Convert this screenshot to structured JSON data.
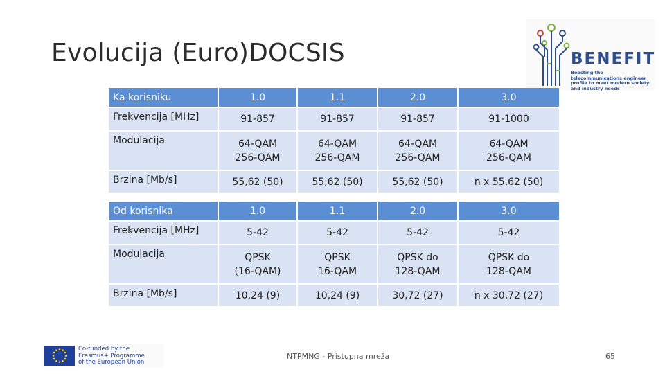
{
  "title": "Evolucija (Euro)DOCSIS",
  "logo": {
    "word": "BENEFIT",
    "tagline": "Boosting the telecommunications engineer profile to meet modern society and industry needs",
    "brand_color": "#2d4d8c"
  },
  "downstream": {
    "header": [
      "Ka korisniku",
      "1.0",
      "1.1",
      "2.0",
      "3.0"
    ],
    "rows": [
      [
        "Frekvencija [MHz]",
        "91-857",
        "91-857",
        "91-857",
        "91-1000"
      ],
      [
        "Modulacija",
        "64-QAM\n256-QAM",
        "64-QAM\n256-QAM",
        "64-QAM\n256-QAM",
        "64-QAM\n256-QAM"
      ],
      [
        "Brzina [Mb/s]",
        "55,62 (50)",
        "55,62 (50)",
        "55,62 (50)",
        "n x 55,62 (50)"
      ]
    ]
  },
  "upstream": {
    "header": [
      "Od korisnika",
      "1.0",
      "1.1",
      "2.0",
      "3.0"
    ],
    "rows": [
      [
        "Frekvencija [MHz]",
        "5-42",
        "5-42",
        "5-42",
        "5-42"
      ],
      [
        "Modulacija",
        "QPSK\n(16-QAM)",
        "QPSK\n16-QAM",
        "QPSK do\n128-QAM",
        "QPSK do\n128-QAM"
      ],
      [
        "Brzina [Mb/s]",
        "10,24 (9)",
        "10,24 (9)",
        "30,72 (27)",
        "n x 30,72 (27)"
      ]
    ]
  },
  "eu_banner": {
    "line1": "Co-funded by the",
    "line2": "Erasmus+ Programme",
    "line3": "of the European Union"
  },
  "footer_text": "NTPMNG - Pristupna mreža",
  "page_number": "65",
  "colors": {
    "header_bg": "#5b8ed3",
    "row_bg": "#d9e3f3"
  }
}
